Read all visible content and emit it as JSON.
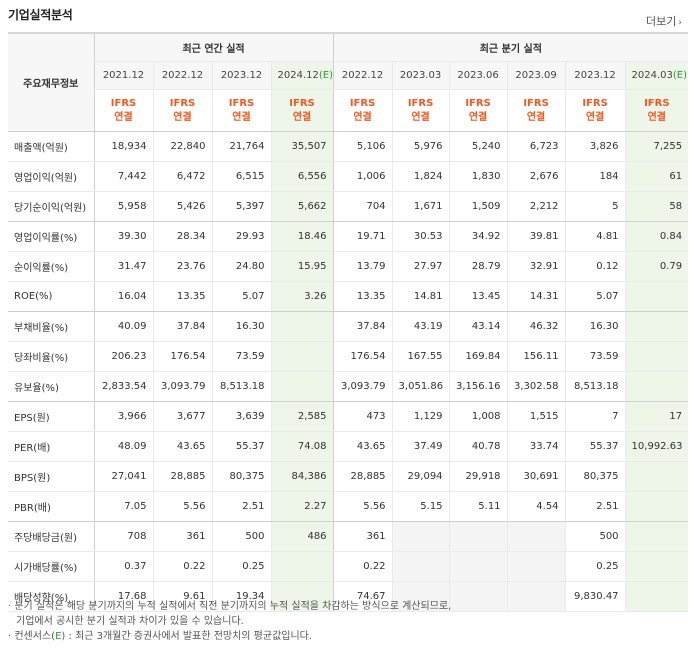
{
  "header": {
    "title": "기업실적분석",
    "more_label": "더보기",
    "more_icon": "chevron-right-icon"
  },
  "table": {
    "label_header": "주요재무정보",
    "annual_group": "최근 연간 실적",
    "quarter_group": "최근 분기 실적",
    "annual_periods": [
      "2021.12",
      "2022.12",
      "2023.12",
      "2024.12"
    ],
    "annual_estimate_mark": "(E)",
    "quarter_periods": [
      "2022.12",
      "2023.03",
      "2023.06",
      "2023.09",
      "2023.12",
      "2024.03"
    ],
    "quarter_estimate_mark": "(E)",
    "basis_line1": "IFRS",
    "basis_line2": "연결",
    "rows": [
      {
        "label": "매출액(억원)",
        "annual": [
          "18,934",
          "22,840",
          "21,764",
          "35,507"
        ],
        "quarter": [
          "5,106",
          "5,976",
          "5,240",
          "6,723",
          "3,826",
          "7,255"
        ]
      },
      {
        "label": "영업이익(억원)",
        "annual": [
          "7,442",
          "6,472",
          "6,515",
          "6,556"
        ],
        "quarter": [
          "1,006",
          "1,824",
          "1,830",
          "2,676",
          "184",
          "61"
        ]
      },
      {
        "label": "당기순이익(억원)",
        "annual": [
          "5,958",
          "5,426",
          "5,397",
          "5,662"
        ],
        "quarter": [
          "704",
          "1,671",
          "1,509",
          "2,212",
          "5",
          "58"
        ]
      },
      {
        "label": "영업이익률(%)",
        "annual": [
          "39.30",
          "28.34",
          "29.93",
          "18.46"
        ],
        "quarter": [
          "19.71",
          "30.53",
          "34.92",
          "39.81",
          "4.81",
          "0.84"
        ]
      },
      {
        "label": "순이익률(%)",
        "annual": [
          "31.47",
          "23.76",
          "24.80",
          "15.95"
        ],
        "quarter": [
          "13.79",
          "27.97",
          "28.79",
          "32.91",
          "0.12",
          "0.79"
        ]
      },
      {
        "label": "ROE(%)",
        "annual": [
          "16.04",
          "13.35",
          "5.07",
          "3.26"
        ],
        "quarter": [
          "13.35",
          "14.81",
          "13.45",
          "14.31",
          "5.07",
          ""
        ]
      },
      {
        "label": "부채비율(%)",
        "annual": [
          "40.09",
          "37.84",
          "16.30",
          ""
        ],
        "quarter": [
          "37.84",
          "43.19",
          "43.14",
          "46.32",
          "16.30",
          ""
        ]
      },
      {
        "label": "당좌비율(%)",
        "annual": [
          "206.23",
          "176.54",
          "73.59",
          ""
        ],
        "quarter": [
          "176.54",
          "167.55",
          "169.84",
          "156.11",
          "73.59",
          ""
        ]
      },
      {
        "label": "유보율(%)",
        "annual": [
          "2,833.54",
          "3,093.79",
          "8,513.18",
          ""
        ],
        "quarter": [
          "3,093.79",
          "3,051.86",
          "3,156.16",
          "3,302.58",
          "8,513.18",
          ""
        ]
      },
      {
        "label": "EPS(원)",
        "annual": [
          "3,966",
          "3,677",
          "3,639",
          "2,585"
        ],
        "quarter": [
          "473",
          "1,129",
          "1,008",
          "1,515",
          "7",
          "17"
        ]
      },
      {
        "label": "PER(배)",
        "annual": [
          "48.09",
          "43.65",
          "55.37",
          "74.08"
        ],
        "quarter": [
          "43.65",
          "37.49",
          "40.78",
          "33.74",
          "55.37",
          "10,992.63"
        ]
      },
      {
        "label": "BPS(원)",
        "annual": [
          "27,041",
          "28,885",
          "80,375",
          "84,386"
        ],
        "quarter": [
          "28,885",
          "29,094",
          "29,918",
          "30,691",
          "80,375",
          ""
        ]
      },
      {
        "label": "PBR(배)",
        "annual": [
          "7.05",
          "5.56",
          "2.51",
          "2.27"
        ],
        "quarter": [
          "5.56",
          "5.15",
          "5.11",
          "4.54",
          "2.51",
          ""
        ]
      },
      {
        "label": "주당배당금(원)",
        "annual": [
          "708",
          "361",
          "500",
          "486"
        ],
        "quarter": [
          "361",
          "",
          "",
          "",
          "500",
          ""
        ]
      },
      {
        "label": "시가배당률(%)",
        "annual": [
          "0.37",
          "0.22",
          "0.25",
          ""
        ],
        "quarter": [
          "0.22",
          "",
          "",
          "",
          "0.25",
          ""
        ]
      },
      {
        "label": "배당성향(%)",
        "annual": [
          "17.68",
          "9.61",
          "19.34",
          ""
        ],
        "quarter": [
          "74.67",
          "",
          "",
          "",
          "9,830.47",
          ""
        ]
      }
    ]
  },
  "notes": {
    "line1": "· 분기 실적은 해당 분기까지의 누적 실적에서 직전 분기까지의 누적 실적을 차감하는 방식으로 계산되므로,",
    "line2": "기업에서 공시한 분기 실적과 차이가 있을 수 있습니다.",
    "line3_prefix": "· 컨센서스(",
    "line3_mark": "E",
    "line3_suffix": ") : 최근 3개월간 증권사에서 발표한 전망치의 평균값입니다."
  },
  "colors": {
    "ifrs": "#f05a22",
    "estimate_mark": "#2c9b36",
    "estimate_bg": "#eef6ea",
    "header_bg": "#f7f7f7",
    "empty_cell_bg": "#f4f4f4"
  }
}
